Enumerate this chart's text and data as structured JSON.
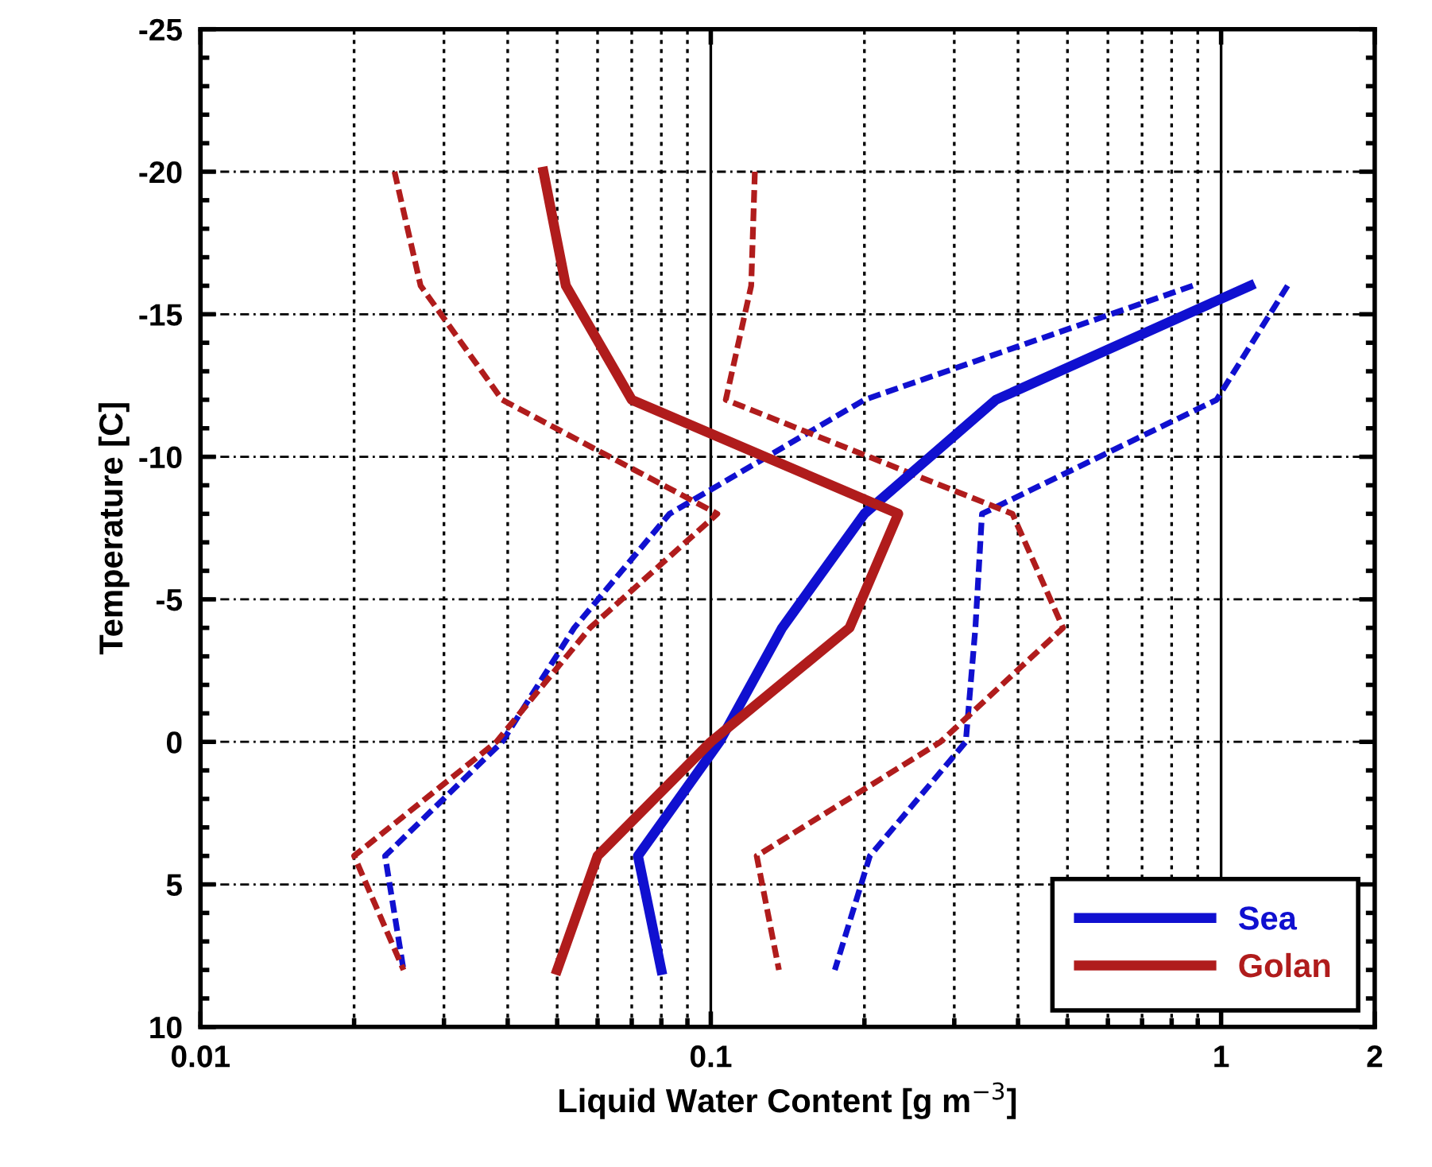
{
  "chart_data": {
    "type": "line",
    "xlabel": "Liquid Water Content [g m$^{−3}$]",
    "ylabel": "Temperature [C]",
    "log": "x",
    "xlim": [
      0.01,
      2
    ],
    "xticks": [
      0.01,
      0.1,
      1,
      2
    ],
    "ylim": [
      10,
      -25
    ],
    "yticks": [
      -25,
      -20,
      -15,
      -10,
      -5,
      0,
      5,
      10
    ],
    "grid": true,
    "legend": "bottom right",
    "marker": "none",
    "series": [
      {
        "name": "Sea",
        "color": "#1010d0",
        "line_style": "solid",
        "x": [
          1.14,
          0.362,
          0.2,
          0.138,
          0.104,
          0.072,
          0.08
        ],
        "values": [
          -16,
          -12,
          -8,
          -4,
          0,
          4,
          8
        ]
      },
      {
        "name": "Golan",
        "color": "#b01c1c",
        "line_style": "solid",
        "x": [
          0.047,
          0.052,
          0.07,
          0.233,
          0.187,
          0.1,
          0.06,
          0.05
        ],
        "values": [
          -20,
          -16,
          -12,
          -8,
          -4,
          0,
          4,
          8
        ]
      },
      {
        "color": "#1010d0",
        "line_style": "dashed",
        "x": [
          0.88,
          0.2,
          0.083,
          0.054,
          0.039,
          0.023,
          0.025
        ],
        "values": [
          -16,
          -12,
          -8,
          -4,
          0,
          4,
          8
        ]
      },
      {
        "color": "#1010d0",
        "line_style": "dashed",
        "x": [
          1.35,
          0.98,
          0.34,
          0.33,
          0.316,
          0.205,
          0.175
        ],
        "values": [
          -16,
          -12,
          -8,
          -4,
          0,
          4,
          8
        ]
      },
      {
        "color": "#b01c1c",
        "line_style": "dashed",
        "x": [
          0.024,
          0.027,
          0.039,
          0.103,
          0.058,
          0.038,
          0.02,
          0.025
        ],
        "values": [
          -20,
          -16,
          -12,
          -8,
          -4,
          0,
          4,
          8
        ]
      },
      {
        "color": "#b01c1c",
        "line_style": "dashed",
        "x": [
          0.122,
          0.12,
          0.107,
          0.39,
          0.49,
          0.282,
          0.123,
          0.136
        ],
        "values": [
          -20,
          -16,
          -12,
          -8,
          -4,
          0,
          4,
          8
        ]
      }
    ]
  }
}
